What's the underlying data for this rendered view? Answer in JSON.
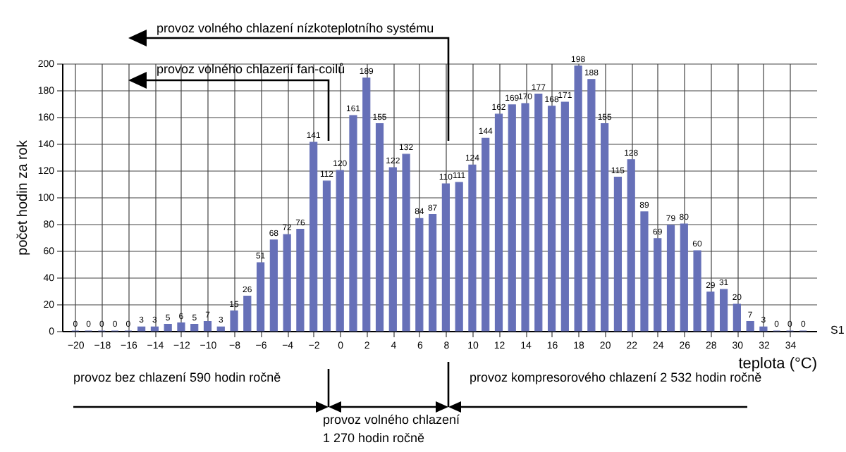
{
  "chart_data": {
    "type": "bar",
    "x": [
      -20,
      -19,
      -18,
      -17,
      -16,
      -15,
      -14,
      -13,
      -12,
      -11,
      -10,
      -9,
      -8,
      -7,
      -6,
      -5,
      -4,
      -3,
      -2,
      -1,
      0,
      1,
      2,
      3,
      4,
      5,
      6,
      7,
      8,
      9,
      10,
      11,
      12,
      13,
      14,
      15,
      16,
      17,
      18,
      19,
      20,
      21,
      22,
      23,
      24,
      25,
      26,
      27,
      28,
      29,
      30,
      31,
      32,
      33,
      34,
      35
    ],
    "series": [
      {
        "name": "S1",
        "color": "#6670b8",
        "values": [
          0,
          0,
          0,
          0,
          0,
          3,
          3,
          5,
          6,
          5,
          7,
          3,
          15,
          26,
          51,
          68,
          72,
          76,
          141,
          112,
          120,
          161,
          189,
          155,
          122,
          132,
          84,
          87,
          110,
          111,
          124,
          144,
          162,
          169,
          170,
          177,
          168,
          171,
          198,
          188,
          155,
          115,
          128,
          89,
          69,
          79,
          80,
          60,
          29,
          31,
          20,
          7,
          3,
          0,
          0,
          0
        ]
      }
    ],
    "xlabel": "teplota (°C)",
    "ylabel": "počet hodin za rok",
    "xlim": [
      -21,
      36
    ],
    "xticks": [
      -20,
      -18,
      -16,
      -14,
      -12,
      -10,
      -8,
      -6,
      -4,
      -2,
      0,
      2,
      4,
      6,
      8,
      10,
      12,
      14,
      16,
      18,
      20,
      22,
      24,
      26,
      28,
      30,
      32,
      34
    ],
    "ylim": [
      0,
      200
    ],
    "yticks": [
      0,
      20,
      40,
      60,
      80,
      100,
      120,
      140,
      160,
      180,
      200
    ],
    "grid": true,
    "data_labels": true,
    "annotations": [
      "provoz volného chlazení nízkoteplotního systému",
      "provoz volného chlazení fan-coilů",
      "provoz bez chlazení 590 hodin ročně",
      "provoz kompresorového chlazení 2 532 hodin ročně",
      "provoz volného chlazení",
      "1 270 hodin ročně"
    ]
  }
}
